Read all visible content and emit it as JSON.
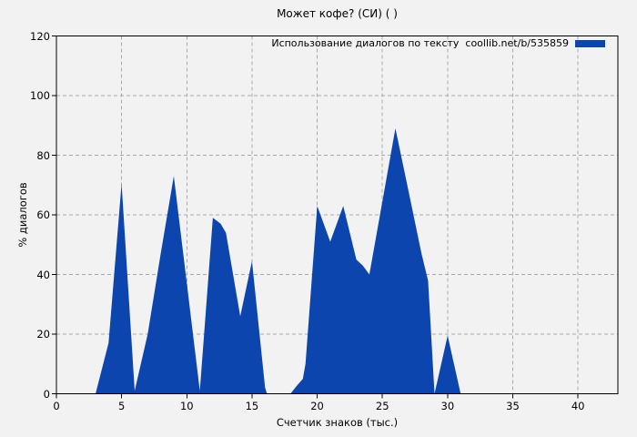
{
  "title": "Может кофе? (СИ) ( )",
  "legend": {
    "label": "Использование диалогов по тексту  coollib.net/b/535859",
    "swatch_color": "#0b45ad"
  },
  "colors": {
    "background": "#f2f2f2",
    "frame": "#000000",
    "grid": "#a9a9a9",
    "series": "#0b45ad",
    "text": "#000000"
  },
  "chart_data": {
    "type": "area",
    "title": "Может кофе? (СИ) ( )",
    "xlabel": "Счетчик знаков (тыс.)",
    "ylabel": "% диалогов",
    "legend_entries": [
      "Использование диалогов по тексту  coollib.net/b/535859"
    ],
    "legend_position": "top-right-inside",
    "grid": true,
    "grid_style": "dashed",
    "xlim": [
      0,
      43.06
    ],
    "ylim": [
      0,
      120
    ],
    "xticks": [
      0,
      5,
      10,
      15,
      20,
      25,
      30,
      35,
      40
    ],
    "yticks": [
      0,
      20,
      40,
      60,
      80,
      100,
      120
    ],
    "series": [
      {
        "name": "Использование диалогов по тексту  coollib.net/b/535859",
        "color": "#0b45ad",
        "points": [
          [
            0,
            0
          ],
          [
            3,
            0
          ],
          [
            4,
            17
          ],
          [
            5,
            70.5
          ],
          [
            6,
            1
          ],
          [
            7,
            20
          ],
          [
            8,
            47
          ],
          [
            9,
            73
          ],
          [
            10,
            37
          ],
          [
            11,
            1
          ],
          [
            12,
            59
          ],
          [
            12.6,
            57
          ],
          [
            13,
            54
          ],
          [
            14.1,
            26
          ],
          [
            15,
            44.5
          ],
          [
            16,
            2
          ],
          [
            16.15,
            0
          ],
          [
            17.95,
            0
          ],
          [
            18.4,
            2.5
          ],
          [
            18.9,
            5
          ],
          [
            19.1,
            10
          ],
          [
            20,
            63
          ],
          [
            21,
            51
          ],
          [
            22,
            63
          ],
          [
            23,
            45
          ],
          [
            23.5,
            43
          ],
          [
            24,
            40
          ],
          [
            25,
            64.5
          ],
          [
            26,
            89
          ],
          [
            27,
            68
          ],
          [
            28,
            47
          ],
          [
            28.5,
            38
          ],
          [
            29,
            0
          ],
          [
            30,
            19.5
          ],
          [
            31,
            0
          ],
          [
            43.06,
            0
          ]
        ]
      }
    ]
  }
}
